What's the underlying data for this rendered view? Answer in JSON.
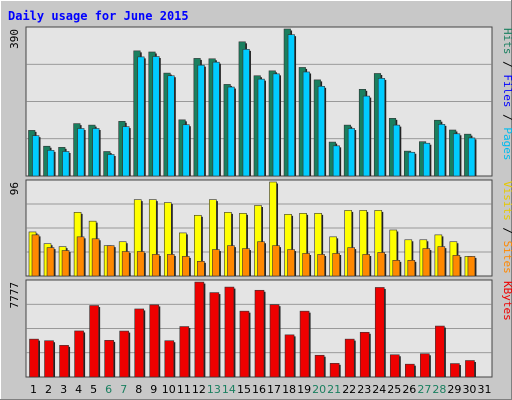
{
  "colors": {
    "background": "#c8c8c8",
    "title": "#0000ff",
    "plot_bg": "#e4e4e4",
    "grid": "#808080",
    "border": "#444444",
    "hits": "#1a7f5f",
    "files": "#00ccff",
    "pages": "#00bbee",
    "visits": "#ffff00",
    "sites": "#ff8800",
    "kbytes": "#ee0000",
    "weekend_day": "#1a7f5f",
    "weekday_day": "#000000"
  },
  "chart_data": {
    "type": "bar",
    "title": "Daily usage for June 2015",
    "days": [
      "1",
      "2",
      "3",
      "4",
      "5",
      "6",
      "7",
      "8",
      "9",
      "10",
      "11",
      "12",
      "13",
      "14",
      "15",
      "16",
      "17",
      "18",
      "19",
      "20",
      "21",
      "22",
      "23",
      "24",
      "25",
      "26",
      "27",
      "28",
      "29",
      "30",
      "31"
    ],
    "weekend_days": [
      "6",
      "7",
      "13",
      "14",
      "20",
      "21",
      "27",
      "28"
    ],
    "panels": [
      {
        "name": "hits-files-pages",
        "ymax": 390,
        "ymax_label": "390",
        "legend": [
          "Pages",
          "Files",
          "Hits"
        ],
        "series": [
          {
            "name": "Hits",
            "values": [
              121,
              79,
              76,
              139,
              135,
              65,
              145,
              332,
              329,
              273,
              149,
              312,
              311,
              243,
              356,
              266,
              279,
              390,
              288,
              255,
              90,
              135,
              230,
              272,
              153,
              66,
              91,
              148,
              122,
              111,
              0
            ]
          },
          {
            "name": "Files",
            "values": [
              107,
              68,
              65,
              126,
              126,
              57,
              131,
              316,
              317,
              266,
              136,
              294,
              302,
              236,
              336,
              257,
              271,
              375,
              276,
              238,
              80,
              126,
              212,
              259,
              135,
              63,
              87,
              137,
              112,
              101,
              0
            ]
          },
          {
            "name": "Pages",
            "values": [
              107,
              68,
              65,
              126,
              126,
              57,
              131,
              316,
              317,
              266,
              136,
              294,
              302,
              236,
              336,
              257,
              271,
              375,
              276,
              238,
              80,
              126,
              212,
              259,
              135,
              63,
              87,
              137,
              112,
              101,
              0
            ]
          }
        ]
      },
      {
        "name": "visits-sites",
        "ymax": 96,
        "ymax_label": "96",
        "legend": [
          "Sites",
          "Visits"
        ],
        "series": [
          {
            "name": "Visits",
            "values": [
              45,
              33,
              30,
              65,
              56,
              31,
              35,
              78,
              78,
              75,
              44,
              62,
              78,
              65,
              64,
              72,
              96,
              63,
              64,
              64,
              40,
              67,
              67,
              67,
              47,
              37,
              37,
              42,
              35,
              20,
              0
            ]
          },
          {
            "name": "Sites",
            "values": [
              42,
              29,
              26,
              40,
              38,
              31,
              25,
              25,
              22,
              22,
              20,
              15,
              27,
              31,
              28,
              35,
              31,
              27,
              23,
              22,
              23,
              29,
              22,
              24,
              16,
              16,
              28,
              30,
              21,
              20,
              0
            ]
          }
        ]
      },
      {
        "name": "kbytes",
        "ymax": 7777,
        "ymax_label": "7777",
        "legend": [
          "KBytes"
        ],
        "series": [
          {
            "name": "KBytes",
            "values": [
              3100,
              2970,
              2590,
              3770,
              5850,
              3000,
              3760,
              5570,
              5900,
              2970,
              4130,
              7770,
              6910,
              7360,
              5390,
              7100,
              5920,
              3450,
              5390,
              1780,
              1120,
              3100,
              3660,
              7330,
              1820,
              1050,
              1900,
              4170,
              1100,
              1350,
              0
            ]
          }
        ]
      }
    ]
  }
}
